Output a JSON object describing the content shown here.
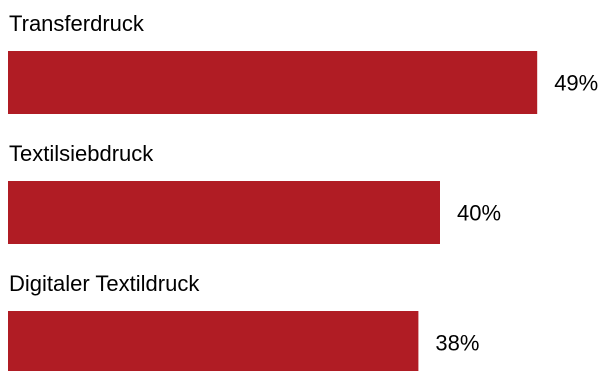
{
  "chart_data": {
    "type": "bar",
    "orientation": "horizontal",
    "categories": [
      "Transferdruck",
      "Textilsiebdruck",
      "Digitaler Textildruck"
    ],
    "values": [
      49,
      40,
      38
    ],
    "value_labels": [
      "49%",
      "40%",
      "38%"
    ],
    "unit": "%",
    "title": "",
    "xlabel": "",
    "ylabel": "",
    "xlim": [
      0,
      60
    ],
    "grid": false,
    "legend": "none",
    "bar_color": "#b01c24"
  }
}
